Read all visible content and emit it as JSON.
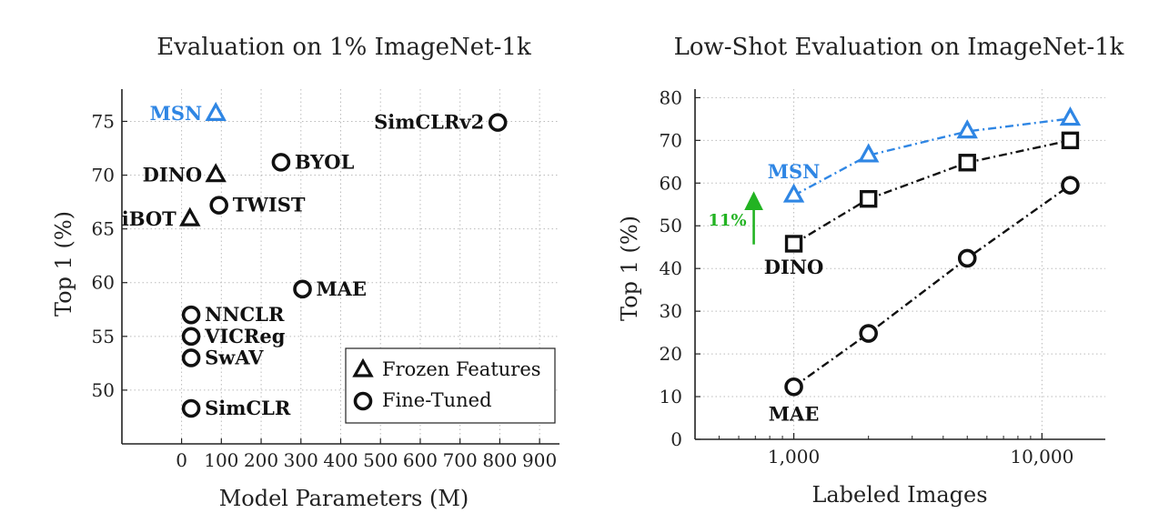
{
  "colors": {
    "msn": "#2f86e4",
    "black": "#111111",
    "arrow": "#22b322"
  },
  "chart_data": [
    {
      "type": "scatter",
      "title": "Evaluation on 1% ImageNet-1k",
      "xlabel": "Model Parameters (M)",
      "ylabel": "Top 1 (%)",
      "xlim": [
        -150,
        950
      ],
      "ylim": [
        45,
        78
      ],
      "x_ticks": [
        0,
        100,
        200,
        300,
        400,
        500,
        600,
        700,
        800,
        900
      ],
      "y_ticks": [
        50,
        55,
        60,
        65,
        70,
        75
      ],
      "grid": true,
      "legend_position": "bottom-right",
      "legend": [
        {
          "marker": "triangle",
          "label": "Frozen Features"
        },
        {
          "marker": "circle",
          "label": "Fine-Tuned"
        }
      ],
      "points": [
        {
          "label": "MSN",
          "x": 86,
          "y": 75.7,
          "marker": "triangle",
          "color": "msn",
          "label_side": "left"
        },
        {
          "label": "DINO",
          "x": 86,
          "y": 70.0,
          "marker": "triangle",
          "color": "black",
          "label_side": "left"
        },
        {
          "label": "iBOT",
          "x": 21,
          "y": 65.9,
          "marker": "triangle",
          "color": "black",
          "label_side": "left"
        },
        {
          "label": "SimCLRv2",
          "x": 795,
          "y": 74.9,
          "marker": "circle",
          "color": "black",
          "label_side": "left"
        },
        {
          "label": "BYOL",
          "x": 250,
          "y": 71.2,
          "marker": "circle",
          "color": "black",
          "label_side": "right"
        },
        {
          "label": "TWIST",
          "x": 94,
          "y": 67.2,
          "marker": "circle",
          "color": "black",
          "label_side": "right"
        },
        {
          "label": "MAE",
          "x": 304,
          "y": 59.4,
          "marker": "circle",
          "color": "black",
          "label_side": "right"
        },
        {
          "label": "NNCLR",
          "x": 24,
          "y": 57.0,
          "marker": "circle",
          "color": "black",
          "label_side": "right"
        },
        {
          "label": "VICReg",
          "x": 24,
          "y": 55.0,
          "marker": "circle",
          "color": "black",
          "label_side": "right"
        },
        {
          "label": "SwAV",
          "x": 24,
          "y": 53.0,
          "marker": "circle",
          "color": "black",
          "label_side": "right"
        },
        {
          "label": "SimCLR",
          "x": 24,
          "y": 48.3,
          "marker": "circle",
          "color": "black",
          "label_side": "right"
        }
      ]
    },
    {
      "type": "line",
      "title": "Low-Shot Evaluation on ImageNet-1k",
      "xlabel": "Labeled Images",
      "ylabel": "Top 1 (%)",
      "xscale": "log",
      "xlim": [
        400,
        18000
      ],
      "ylim": [
        0,
        82
      ],
      "x_ticks": [
        1000,
        10000
      ],
      "x_tick_labels": [
        "1,000",
        "10,000"
      ],
      "y_ticks": [
        0,
        10,
        20,
        30,
        40,
        50,
        60,
        70,
        80
      ],
      "grid": true,
      "x": [
        1000,
        2000,
        5000,
        13000
      ],
      "series": [
        {
          "name": "MSN",
          "marker": "triangle",
          "color": "msn",
          "values": [
            57.1,
            66.5,
            72.1,
            75.1
          ]
        },
        {
          "name": "DINO",
          "marker": "square",
          "color": "black",
          "values": [
            45.8,
            56.3,
            64.8,
            70.0
          ]
        },
        {
          "name": "MAE",
          "marker": "circle",
          "color": "black",
          "values": [
            12.3,
            24.8,
            42.4,
            59.5
          ]
        }
      ],
      "annotation": {
        "text": "11%",
        "from": 45.0,
        "to": 58.0,
        "color": "arrow"
      }
    }
  ]
}
